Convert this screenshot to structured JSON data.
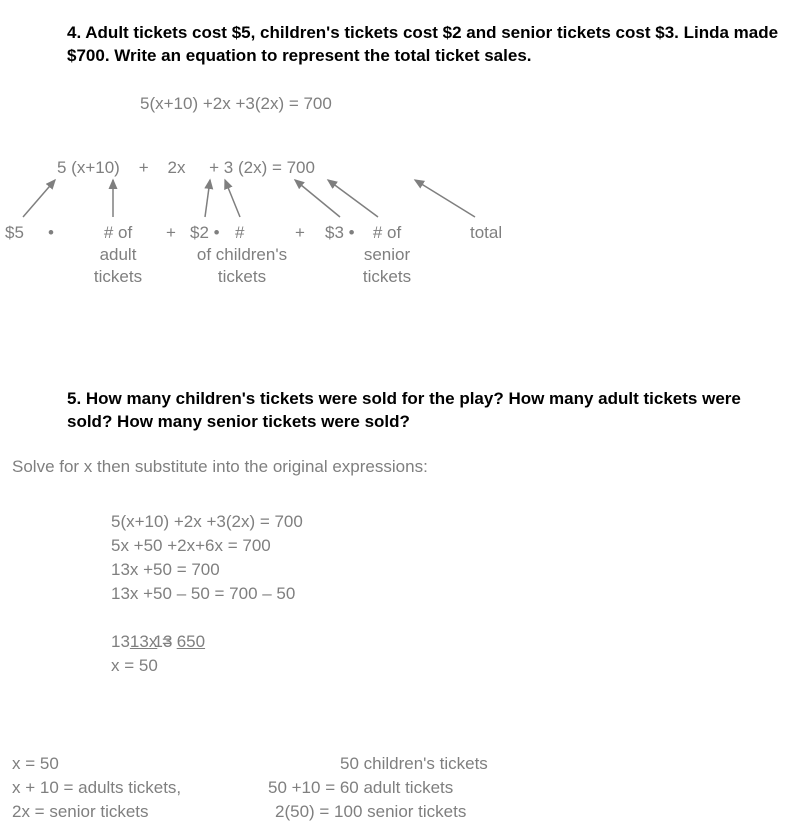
{
  "q4": {
    "prompt": "4.   Adult tickets cost $5, children's tickets cost $2 and senior tickets cost $3.  Linda made $700.  Write an equation to represent the total ticket sales.",
    "eq_full": "5(x+10) +2x +3(2x) = 700",
    "eq_spaced": "5 (x+10)    +    2x     + 3 (2x) = 700",
    "breakdown_row": "$5  •   # of      +  $2 • #       +   $3 • # of       total",
    "labels": {
      "adult": "# of\nadult\ntickets",
      "children": "# of\nof children's\ntickets",
      "senior": "# of\nsenior\ntickets",
      "price5": "$5",
      "plus1": "+",
      "price2": "$2 •",
      "plus2": "+",
      "price3": "$3 •",
      "total": "total"
    }
  },
  "q5": {
    "prompt": "5.  How many children's tickets were sold for the play?  How many adult tickets were sold?  How many senior tickets were sold?",
    "intro": "Solve for x then substitute into the original expressions:",
    "work": [
      "5(x+10) +2x +3(2x) = 700",
      "5x +50 +2x+6x = 700",
      "13x +50 = 700",
      "13x +50 – 50 = 700 – 50"
    ],
    "frac_num_left": "13x",
    "frac_eq": " = ",
    "frac_num_right": "650",
    "frac_den_left": "13",
    "frac_den_right": "13",
    "work_last": "x = 50",
    "answers": {
      "col1": [
        "x = 50",
        "x + 10 = adults tickets,",
        "2x = senior tickets"
      ],
      "col2": [
        "50 children's tickets",
        "50 +10 = 60 adult tickets",
        "2(50) = 100 senior tickets"
      ]
    }
  },
  "style": {
    "text_color": "#000000",
    "math_color": "#7f7f7f",
    "background": "#ffffff",
    "font_size_pt": 13,
    "arrow_color": "#7f7f7f",
    "arrow_stroke_width": 1.5
  }
}
